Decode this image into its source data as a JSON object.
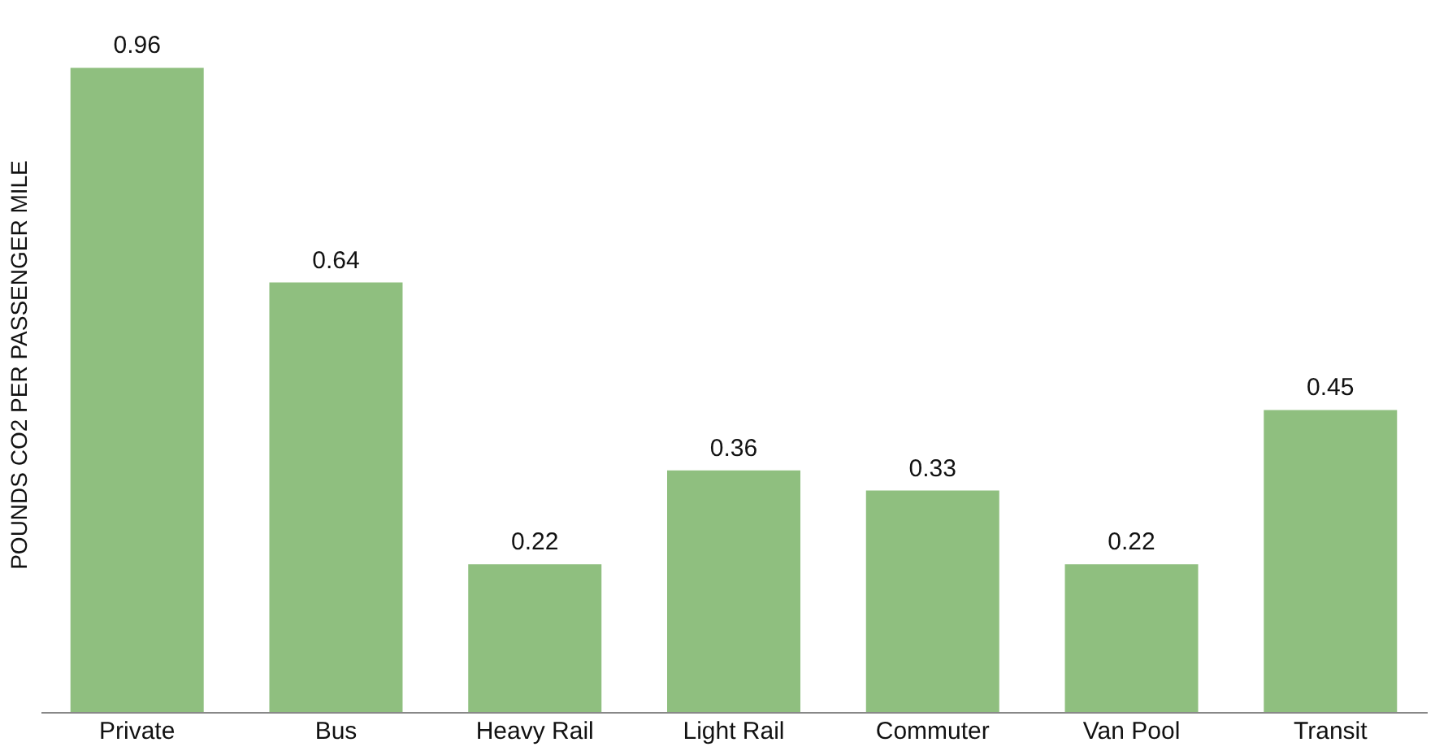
{
  "chart_data": {
    "type": "bar",
    "ylabel": "POUNDS CO2 PER PASSENGER MILE",
    "categories": [
      "Private",
      "Bus",
      "Heavy Rail",
      "Light Rail",
      "Commuter",
      "Van Pool",
      "Transit"
    ],
    "values": [
      0.96,
      0.64,
      0.22,
      0.36,
      0.33,
      0.22,
      0.45
    ],
    "color": "#8fbf7f",
    "data_labels": true
  }
}
